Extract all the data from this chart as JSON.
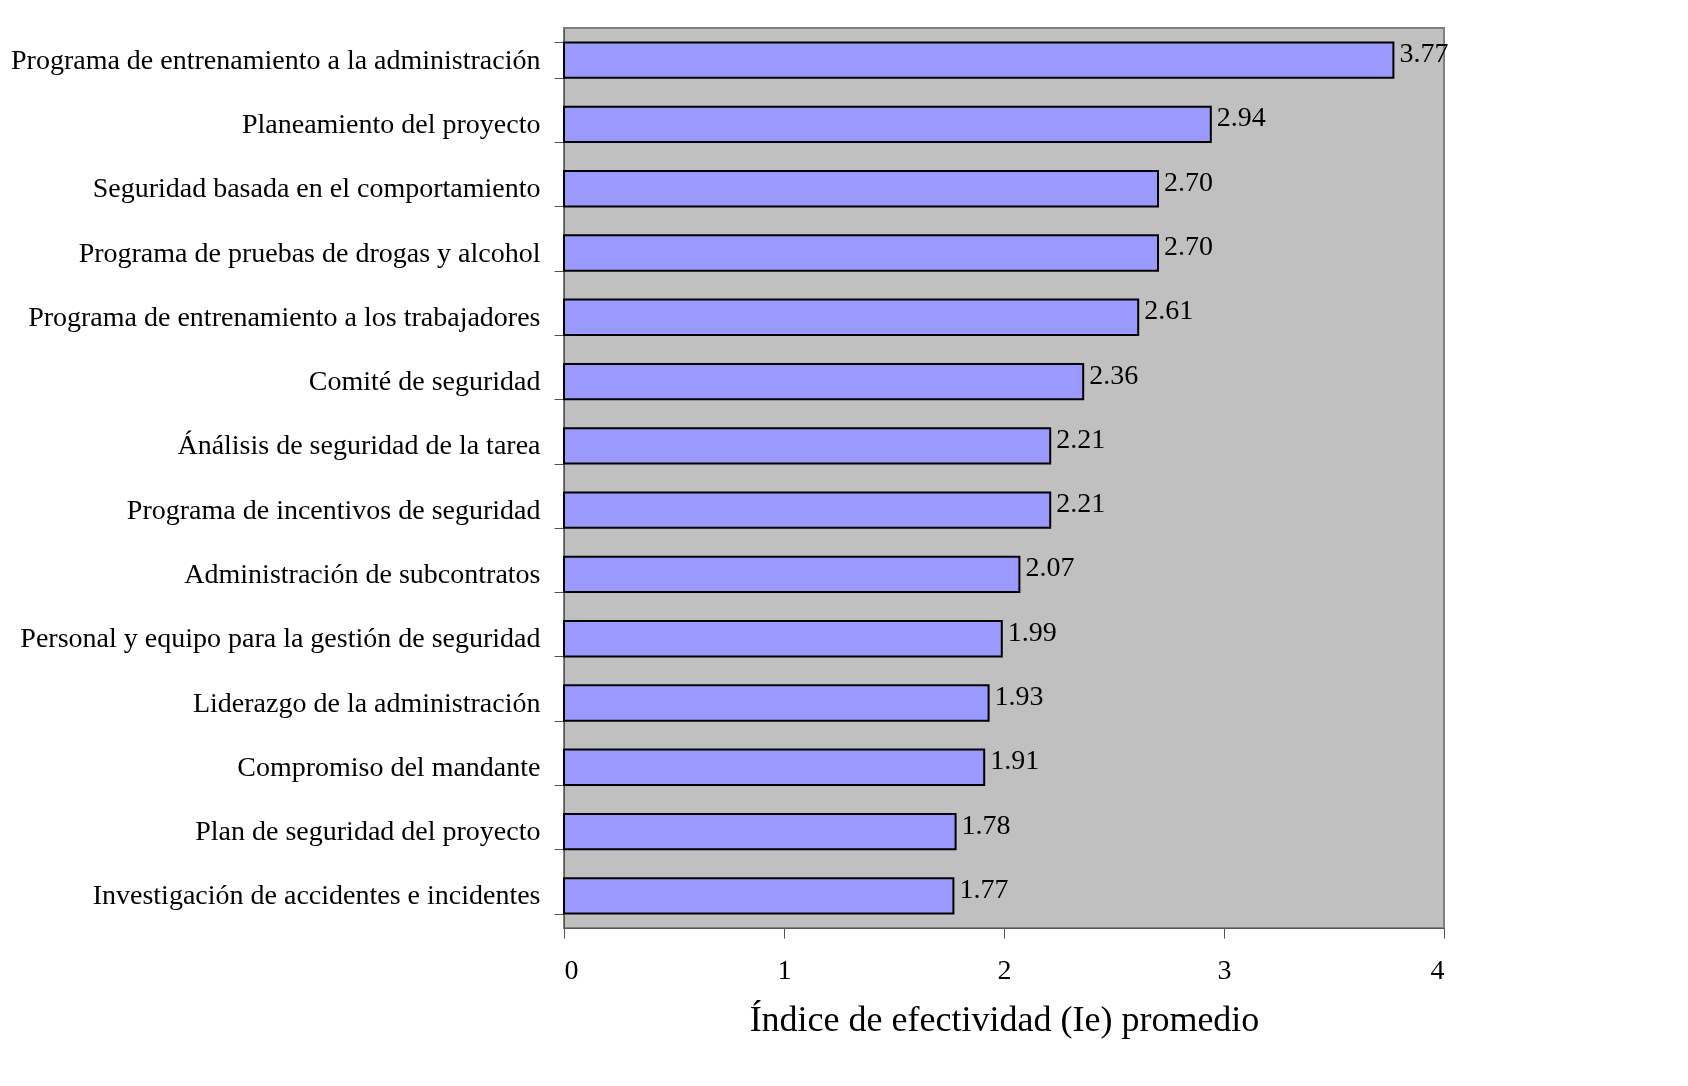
{
  "chart_data": {
    "type": "bar",
    "orientation": "horizontal",
    "xlabel": "Índice de efectividad (Ie) promedio",
    "categories": [
      "Programa de entrenamiento a la administración",
      "Planeamiento del proyecto",
      "Seguridad basada en el comportamiento",
      "Programa de pruebas de drogas y alcohol",
      "Programa de entrenamiento a los trabajadores",
      "Comité de seguridad",
      "Ánálisis de seguridad de la tarea",
      "Programa de incentivos de seguridad",
      "Administración de subcontratos",
      "Personal y equipo para la gestión de seguridad",
      "Liderazgo de la administración",
      "Compromiso del mandante",
      "Plan de seguridad del proyecto",
      "Investigación de accidentes e incidentes"
    ],
    "values": [
      3.77,
      2.94,
      2.7,
      2.7,
      2.61,
      2.36,
      2.21,
      2.21,
      2.07,
      1.99,
      1.93,
      1.91,
      1.78,
      1.77
    ],
    "value_labels": [
      "3.77",
      "2.94",
      "2.70",
      "2.70",
      "2.61",
      "2.36",
      "2.21",
      "2.21",
      "2.07",
      "1.99",
      "1.93",
      "1.91",
      "1.78",
      "1.77"
    ],
    "color": "#9999ff",
    "xlim": [
      0,
      4
    ],
    "xticks": [
      0,
      1,
      2,
      3,
      4
    ]
  }
}
